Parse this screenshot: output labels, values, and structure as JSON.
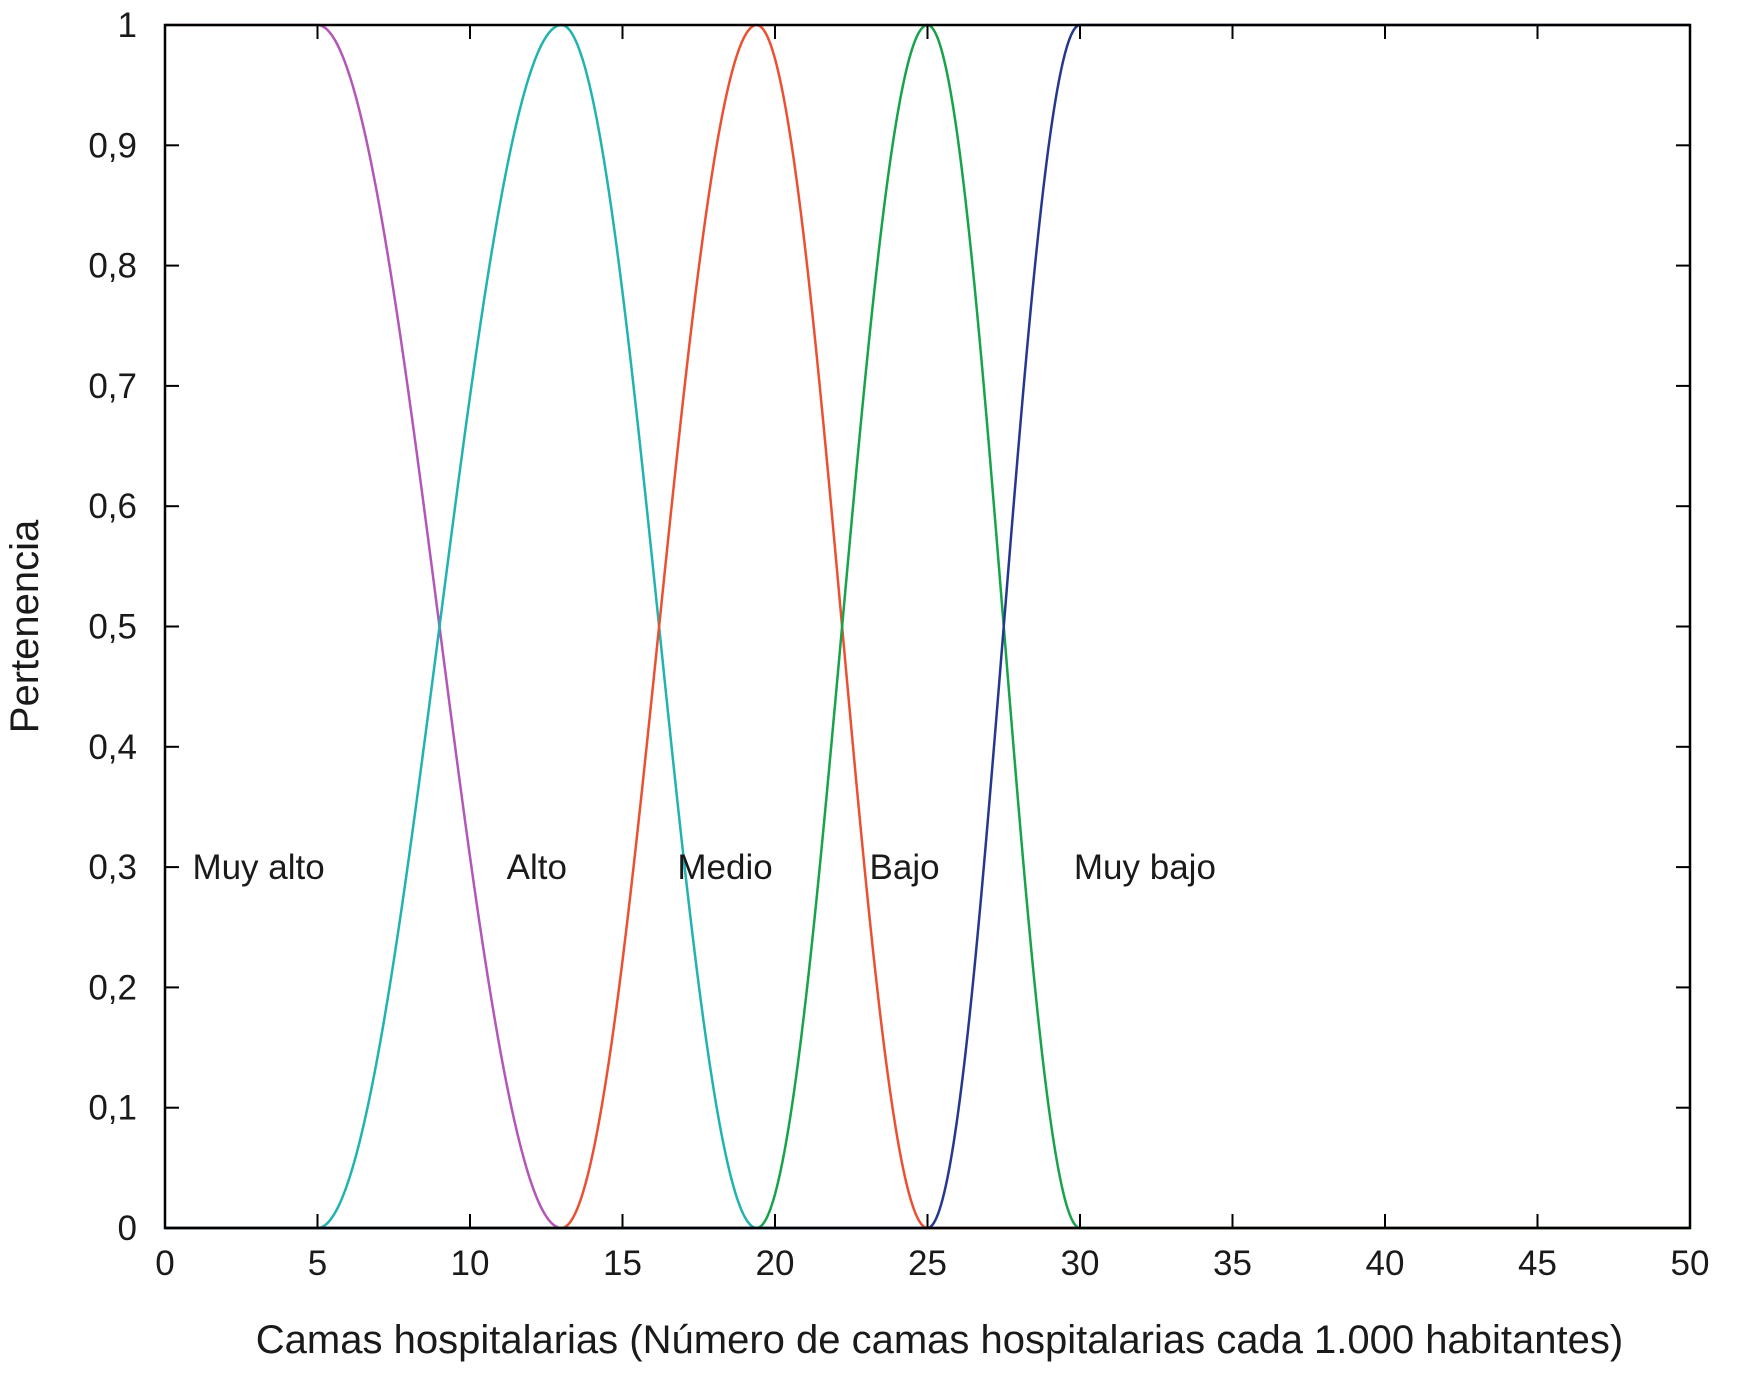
{
  "chart_data": {
    "type": "line",
    "xlabel": "Camas hospitalarias (Número de camas hospitalarias cada 1.000 habitantes)",
    "ylabel": "Pertenencia",
    "xlim": [
      0,
      50
    ],
    "ylim": [
      0,
      1
    ],
    "xticks": [
      {
        "value": 0,
        "label": "0"
      },
      {
        "value": 5,
        "label": "5"
      },
      {
        "value": 10,
        "label": "10"
      },
      {
        "value": 15,
        "label": "15"
      },
      {
        "value": 20,
        "label": "20"
      },
      {
        "value": 25,
        "label": "25"
      },
      {
        "value": 30,
        "label": "30"
      },
      {
        "value": 35,
        "label": "35"
      },
      {
        "value": 40,
        "label": "40"
      },
      {
        "value": 45,
        "label": "45"
      },
      {
        "value": 50,
        "label": "50"
      }
    ],
    "yticks": [
      {
        "value": 0,
        "label": "0"
      },
      {
        "value": 0.1,
        "label": "0,1"
      },
      {
        "value": 0.2,
        "label": "0,2"
      },
      {
        "value": 0.3,
        "label": "0,3"
      },
      {
        "value": 0.4,
        "label": "0,4"
      },
      {
        "value": 0.5,
        "label": "0,5"
      },
      {
        "value": 0.6,
        "label": "0,6"
      },
      {
        "value": 0.7,
        "label": "0,7"
      },
      {
        "value": 0.8,
        "label": "0,8"
      },
      {
        "value": 0.9,
        "label": "0,9"
      },
      {
        "value": 1,
        "label": "1"
      }
    ],
    "grid": false,
    "series": [
      {
        "name": "Muy alto",
        "color": "#b455b8",
        "x": [
          0,
          5,
          13,
          50
        ],
        "y": [
          1,
          1,
          0,
          0
        ],
        "label_x": 0.9,
        "label_y": 0.3
      },
      {
        "name": "Alto",
        "color": "#1fb3b1",
        "x": [
          0,
          5,
          13,
          19.4,
          50
        ],
        "y": [
          0,
          0,
          1,
          0,
          0
        ],
        "label_x": 11.2,
        "label_y": 0.3
      },
      {
        "name": "Medio",
        "color": "#ec4f32",
        "x": [
          0,
          13,
          19.4,
          25,
          50
        ],
        "y": [
          0,
          0,
          1,
          0,
          0
        ],
        "label_x": 16.8,
        "label_y": 0.3
      },
      {
        "name": "Bajo",
        "color": "#17a34a",
        "x": [
          0,
          19.4,
          25,
          30,
          50
        ],
        "y": [
          0,
          0,
          1,
          0,
          0
        ],
        "label_x": 23.1,
        "label_y": 0.3
      },
      {
        "name": "Muy bajo",
        "color": "#25388f",
        "x": [
          0,
          25,
          30,
          50
        ],
        "y": [
          0,
          0,
          1,
          1
        ],
        "label_x": 29.8,
        "label_y": 0.3
      }
    ]
  }
}
